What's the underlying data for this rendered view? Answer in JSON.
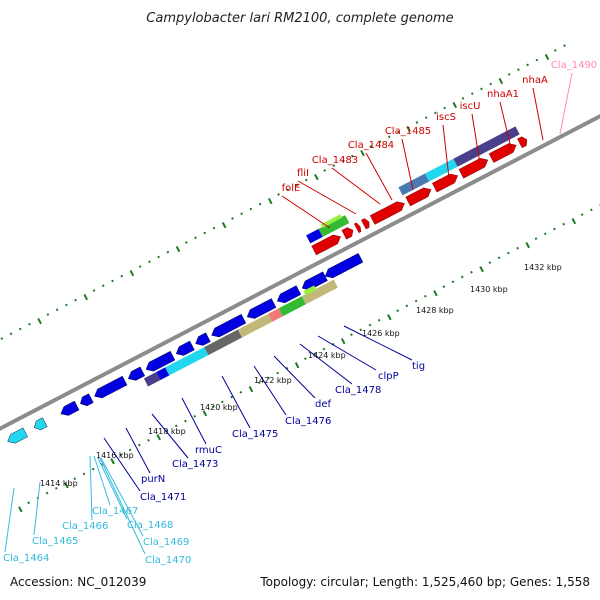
{
  "title": "Campylobacter lari RM2100, complete genome",
  "accession": "Accession: NC_012039",
  "summary": "Topology: circular; Length: 1,525,460 bp; Genes: 1,558",
  "colors": {
    "backbone": "#8c8c8c",
    "tick": "#1f7a1f",
    "forward_gene": "#e00000",
    "reverse_gene": "#0000e0",
    "label_red": "#cc0000",
    "label_pink": "#ff88bb",
    "label_blue": "#000099",
    "label_cyan": "#33bbdd",
    "cog_dark": "#4a3f8a",
    "cog_cyan": "#22d6f0",
    "cog_steel": "#4a7ab0",
    "cog_gray": "#666666",
    "cog_khaki": "#c2b87a",
    "cog_salmon": "#f07878",
    "cog_green": "#33bb33",
    "cog_lime": "#99ee44"
  },
  "tick_labels": [
    "1414 kbp",
    "1416 kbp",
    "1418 kbp",
    "1420 kbp",
    "1422 kbp",
    "1424 kbp",
    "1426 kbp",
    "1428 kbp",
    "1430 kbp",
    "1432 kbp"
  ],
  "forward_labels": [
    "folE",
    "fliI",
    "Cla_1483",
    "Cla_1484",
    "Cla_1485",
    "iscS",
    "iscU",
    "nhaA1",
    "nhaA",
    "Cla_1490"
  ],
  "reverse_labels_upper": [
    "tig",
    "clpP",
    "Cla_1478",
    "def",
    "Cla_1476",
    "Cla_1475",
    "rmuC",
    "Cla_1473",
    "purN",
    "Cla_1471"
  ],
  "reverse_labels_lower": [
    "Cla_1470",
    "Cla_1469",
    "Cla_1468",
    "Cla_1467",
    "Cla_1466",
    "Cla_1465",
    "Cla_1464"
  ]
}
